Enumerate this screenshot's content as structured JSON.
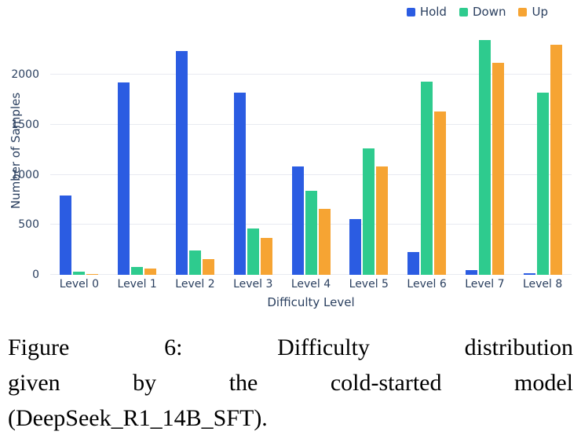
{
  "chart_data": {
    "type": "bar",
    "title": "",
    "xlabel": "Difficulty Level",
    "ylabel": "Number of Samples",
    "categories": [
      "Level 0",
      "Level 1",
      "Level 2",
      "Level 3",
      "Level 4",
      "Level 5",
      "Level 6",
      "Level 7",
      "Level 8"
    ],
    "series": [
      {
        "name": "Hold",
        "color": "#2b5ce2",
        "values": [
          790,
          1920,
          2240,
          1820,
          1080,
          560,
          230,
          50,
          15
        ]
      },
      {
        "name": "Down",
        "color": "#2ecb8e",
        "values": [
          30,
          80,
          240,
          460,
          840,
          1260,
          1930,
          2350,
          1820
        ]
      },
      {
        "name": "Up",
        "color": "#f6a433",
        "values": [
          10,
          60,
          160,
          370,
          660,
          1080,
          1630,
          2120,
          2300
        ]
      }
    ],
    "yticks": [
      0,
      500,
      1000,
      1500,
      2000
    ],
    "ylim": [
      0,
      2480
    ],
    "grid": true,
    "legend_position": "top-right",
    "text_color": "#2a3f5f",
    "gridline_color": "#e8eaf1"
  },
  "caption": {
    "lines": [
      "Figure 6: Difficulty distribution",
      "given by the cold-started model",
      "(DeepSeek_R1_14B_SFT)."
    ]
  }
}
